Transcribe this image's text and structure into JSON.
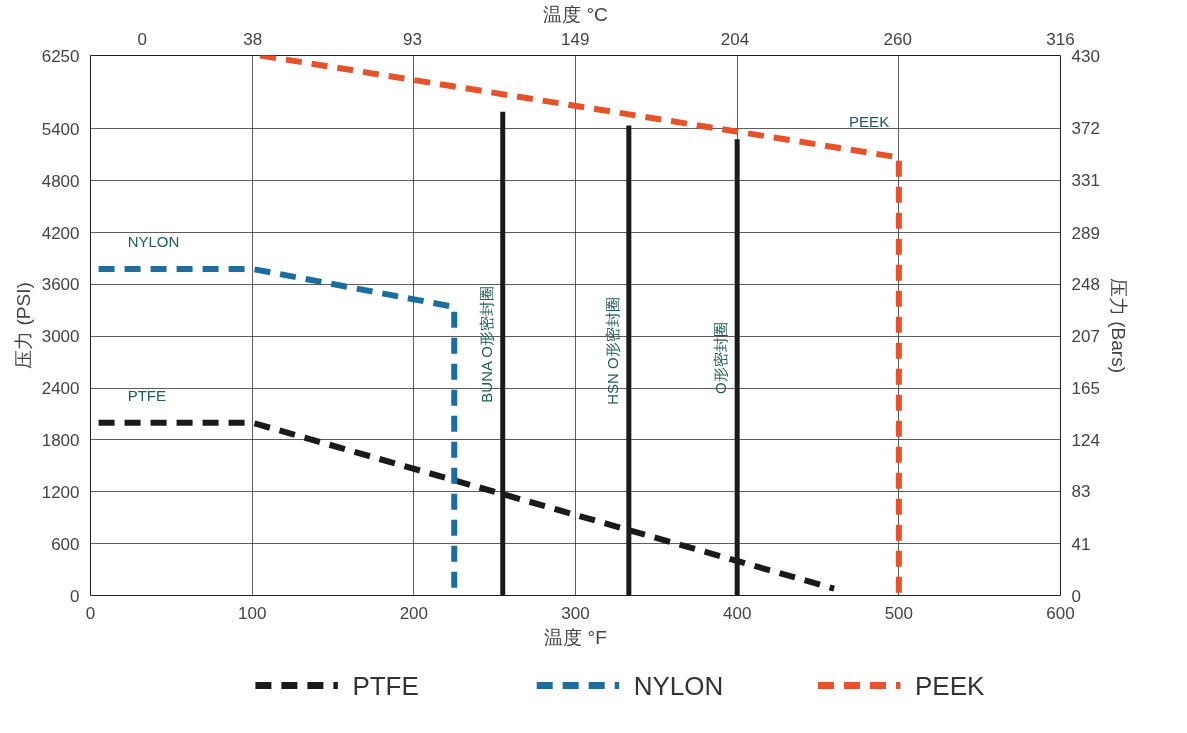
{
  "chart_data": {
    "type": "line",
    "xlabel": "温度 °F",
    "x2label": "温度 °C",
    "ylabel": "压力 (PSI)",
    "y2label": "压力 (Bars)",
    "xlim": [
      0,
      600
    ],
    "xticks": [
      0,
      100,
      200,
      300,
      400,
      500,
      600
    ],
    "x2lim": [
      -17.8,
      316
    ],
    "x2ticks": [
      0,
      38,
      93,
      149,
      204,
      260,
      316
    ],
    "ylim": [
      0,
      6250
    ],
    "yticks": [
      0,
      600,
      1200,
      1800,
      2400,
      3000,
      3600,
      4200,
      4800,
      5400,
      6250
    ],
    "y2lim": [
      0,
      430
    ],
    "y2ticks": [
      0,
      41,
      83,
      124,
      165,
      207,
      248,
      289,
      331,
      372,
      430
    ],
    "grid": true,
    "legend": "bottom",
    "marker": "none",
    "series": [
      {
        "name": "PTFE",
        "color": "#1a1a1a",
        "line_style": "dashed",
        "x": [
          5,
          100,
          460
        ],
        "values": [
          2000,
          2000,
          80
        ]
      },
      {
        "name": "NYLON",
        "color": "#1b6ea0",
        "line_style": "dashed",
        "x": [
          5,
          100,
          225,
          225
        ],
        "values": [
          3780,
          3780,
          3340,
          0
        ]
      },
      {
        "name": "PEEK",
        "color": "#e8522a",
        "line_style": "dashed",
        "x": [
          105,
          500,
          500
        ],
        "values": [
          6250,
          5070,
          0
        ]
      },
      {
        "name": "BUNA O形密封圈",
        "color": "#1a1a1a",
        "line_style": "solid",
        "x": [
          255,
          255
        ],
        "values": [
          0,
          5600
        ]
      },
      {
        "name": "HSN O形密封圈",
        "color": "#1a1a1a",
        "line_style": "solid",
        "x": [
          333,
          333
        ],
        "values": [
          0,
          5440
        ]
      },
      {
        "name": "O形密封圈",
        "color": "#1a1a1a",
        "line_style": "solid",
        "x": [
          400,
          400
        ],
        "values": [
          0,
          5280
        ]
      }
    ],
    "annotations": [
      "NYLON",
      "PTFE",
      "PEEK"
    ]
  }
}
